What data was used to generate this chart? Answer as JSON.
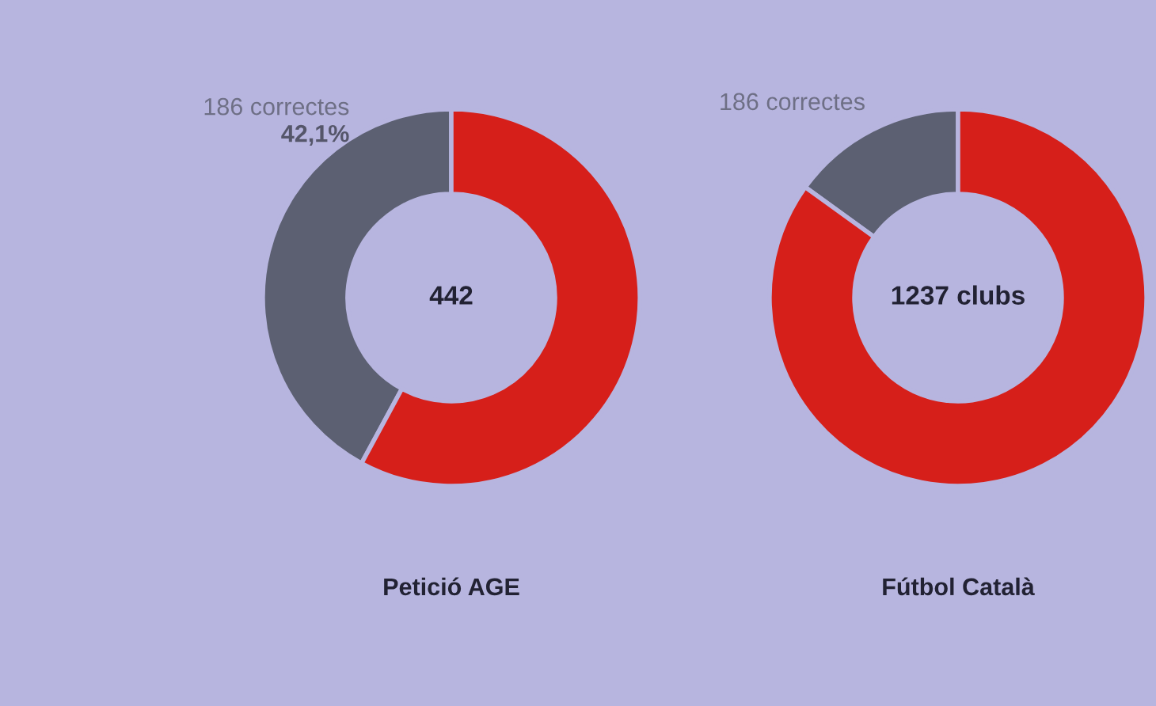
{
  "chart_data": [
    {
      "type": "donut",
      "title": "Petició AGE",
      "categories": [
        "186 correctes",
        null
      ],
      "values": [
        42.1,
        57.9
      ],
      "colors": [
        "#5c6072",
        "#d61f1a"
      ],
      "value_labels": [
        "42,1%",
        null
      ],
      "annotations": [
        "442"
      ]
    },
    {
      "type": "donut",
      "title": "Fútbol Català",
      "categories": [
        "186 correctes",
        null
      ],
      "values": [
        186,
        1051
      ],
      "colors": [
        "#5c6072",
        "#d61f1a"
      ],
      "annotations": [
        "1237 clubs"
      ]
    }
  ]
}
